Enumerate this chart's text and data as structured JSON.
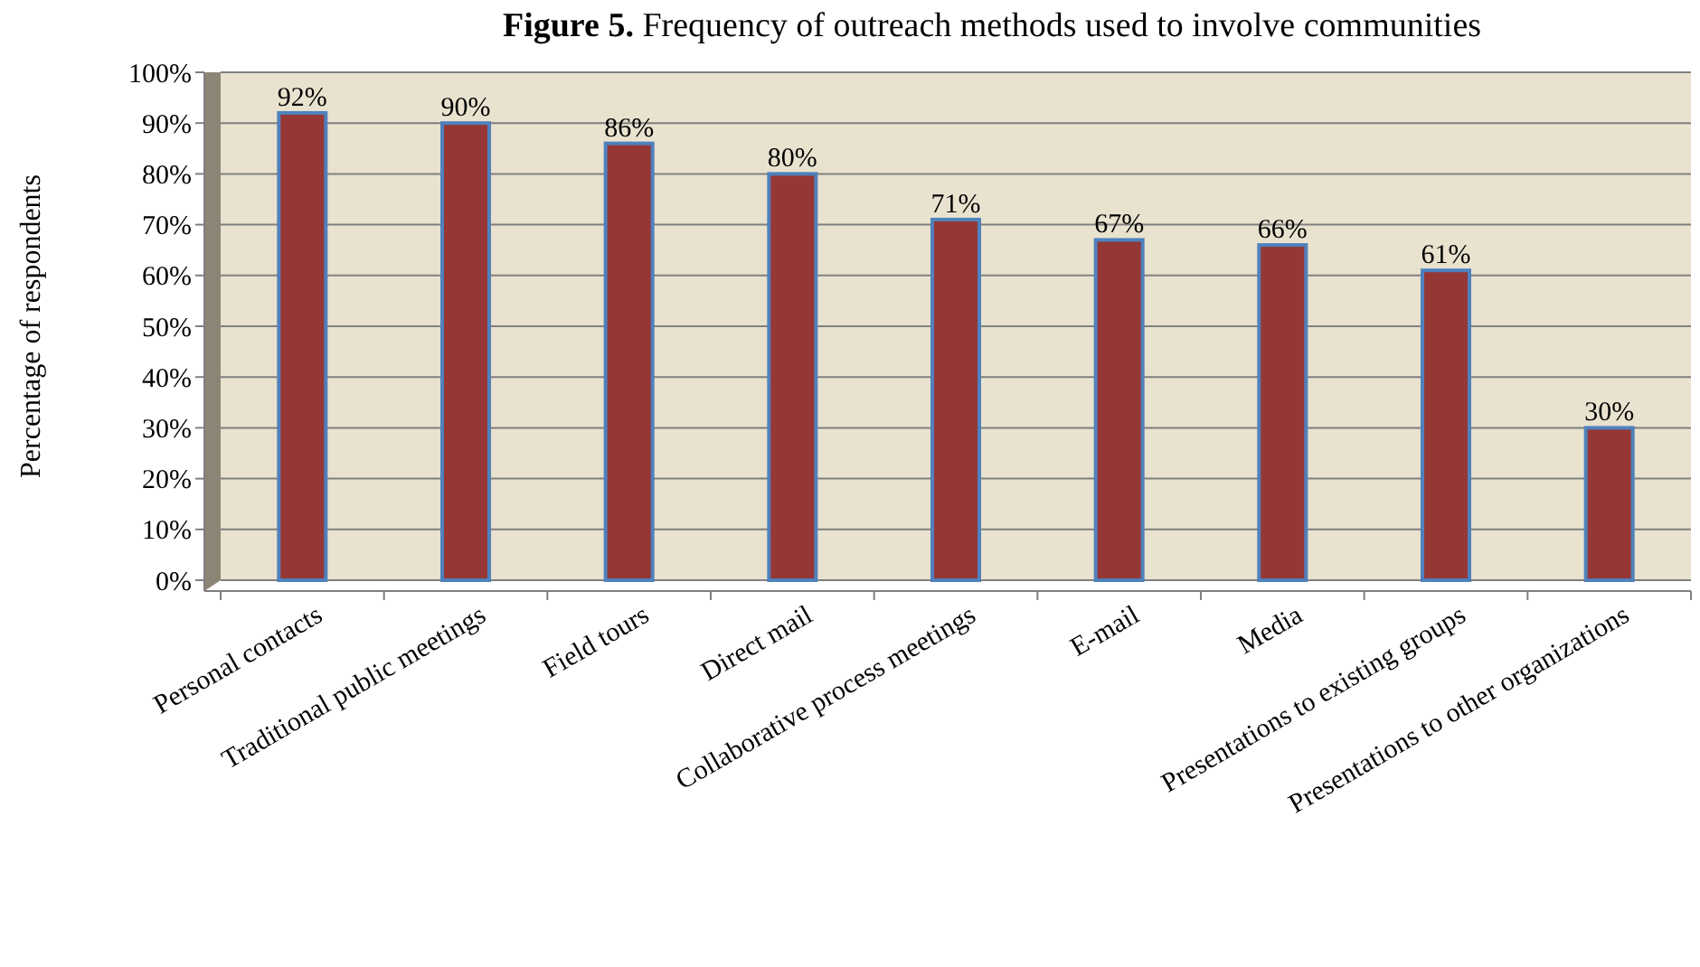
{
  "chart_data": {
    "type": "bar",
    "title": "Figure 5. Frequency of outreach methods used to involve communities",
    "ylabel": "Percentage of respondents",
    "categories": [
      "Personal contacts",
      "Traditional public meetings",
      "Field tours",
      "Direct mail",
      "Collaborative process meetings",
      "E-mail",
      "Media",
      "Presentations to existing groups",
      "Presentations to other organizations"
    ],
    "values": [
      92,
      90,
      86,
      80,
      71,
      67,
      66,
      61,
      30
    ],
    "color": "#953735",
    "value_labels": [
      "92%",
      "90%",
      "86%",
      "80%",
      "71%",
      "67%",
      "66%",
      "61%",
      "30%"
    ],
    "ylim": [
      0,
      100
    ],
    "yticks": [
      {
        "value": 0,
        "label": "0%"
      },
      {
        "value": 10,
        "label": "10%"
      },
      {
        "value": 20,
        "label": "20%"
      },
      {
        "value": 30,
        "label": "30%"
      },
      {
        "value": 40,
        "label": "40%"
      },
      {
        "value": 50,
        "label": "50%"
      },
      {
        "value": 60,
        "label": "60%"
      },
      {
        "value": 70,
        "label": "70%"
      },
      {
        "value": 80,
        "label": "80%"
      },
      {
        "value": 90,
        "label": "90%"
      },
      {
        "value": 100,
        "label": "100%"
      }
    ],
    "grid": "y"
  }
}
